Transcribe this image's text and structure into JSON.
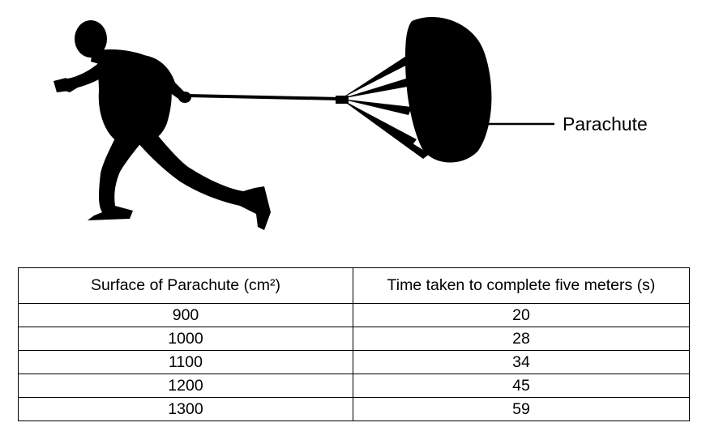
{
  "figure": {
    "parachute_label": "Parachute"
  },
  "table": {
    "headers": {
      "surface": "Surface of Parachute (cm²)",
      "time": "Time taken to complete five meters (s)"
    },
    "rows": [
      {
        "surface": "900",
        "time": "20"
      },
      {
        "surface": "1000",
        "time": "28"
      },
      {
        "surface": "1100",
        "time": "34"
      },
      {
        "surface": "1200",
        "time": "45"
      },
      {
        "surface": "1300",
        "time": "59"
      }
    ]
  }
}
